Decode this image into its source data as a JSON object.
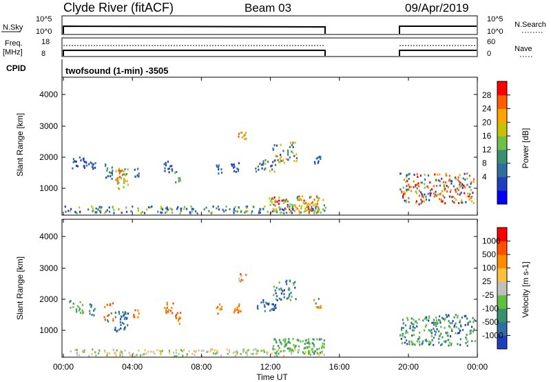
{
  "header": {
    "station": "Clyde River (fitACF)",
    "beam": "Beam 03",
    "date": "09/Apr/2019"
  },
  "top_panels": {
    "nsky_label": "N.Sky",
    "nsky_ticks": [
      "10^5",
      "10^0"
    ],
    "nsearch_label": "N.Search",
    "nsearch_ticks": [
      "10^5",
      "10^0"
    ],
    "freq_label": "Freq.",
    "freq_unit": "[MHz]",
    "freq_ticks": [
      "18",
      "8"
    ],
    "nave_label": "Nave",
    "nave_ticks": [
      "60",
      "0"
    ],
    "cpid_label": "CPID",
    "cpid_value": "twofsound (1-min) -3505"
  },
  "chart_data": [
    {
      "type": "heatmap",
      "name": "power",
      "ylabel": "Slant Range [km]",
      "ylim": [
        200,
        4600
      ],
      "y_ticks": [
        "4000",
        "3000",
        "2000",
        "1000"
      ],
      "colorbar_label": "Power [dB]",
      "colorbar_ticks": [
        "28",
        "24",
        "20",
        "16",
        "12",
        "8",
        "4"
      ],
      "colors": [
        "#0000ff",
        "#1f3fbf",
        "#2e6fa0",
        "#3a8f6f",
        "#6fc049",
        "#c8c000",
        "#ffa500",
        "#ff5f00",
        "#ff0000"
      ],
      "data_gaps_ut": [
        [
          15.15,
          19.5
        ]
      ]
    },
    {
      "type": "heatmap",
      "name": "velocity",
      "ylabel": "Slant Range [km]",
      "xlabel": "Time UT",
      "ylim": [
        200,
        4600
      ],
      "y_ticks": [
        "4000",
        "3000",
        "2000",
        "1000"
      ],
      "x_ticks": [
        "00:00",
        "04:00",
        "08:00",
        "12:00",
        "16:00",
        "20:00",
        "00:00"
      ],
      "colorbar_label": "Velocity [m s-1]",
      "colorbar_ticks": [
        "1000",
        "500",
        "100",
        "25",
        "-25",
        "-100",
        "-500",
        "-1000"
      ],
      "colors": [
        "#1f3fbf",
        "#2e6fa0",
        "#3a8f6f",
        "#5fbf3f",
        "#c0c0c0",
        "#ffc040",
        "#ff8c00",
        "#ff5000",
        "#ff0000"
      ]
    }
  ]
}
